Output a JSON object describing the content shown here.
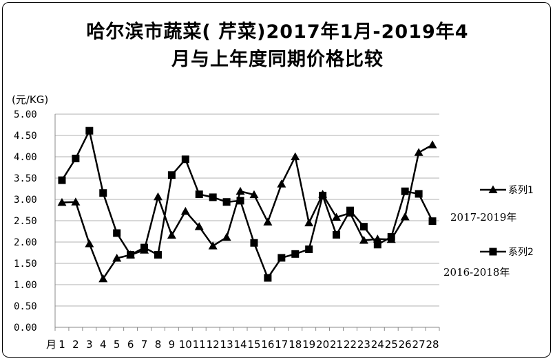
{
  "chart_data": {
    "type": "line",
    "title_line1": "哈尔滨市蔬菜( 芹菜)2017年1月-2019年4",
    "title_line2": "月与上年度同期价格比较",
    "ylabel": "(元/KG)",
    "ylim": [
      0,
      5
    ],
    "ytick_labels": [
      "0.00",
      "0.50",
      "1.00",
      "1.50",
      "2.00",
      "2.50",
      "3.00",
      "3.50",
      "4.00",
      "4.50",
      "5.00"
    ],
    "x_first_prefix": "月",
    "categories": [
      "1",
      "2",
      "3",
      "4",
      "5",
      "6",
      "7",
      "8",
      "9",
      "10",
      "11",
      "12",
      "13",
      "14",
      "15",
      "16",
      "17",
      "18",
      "19",
      "20",
      "21",
      "22",
      "23",
      "24",
      "25",
      "26",
      "27",
      "28"
    ],
    "grid": true,
    "series": [
      {
        "name": "系列1",
        "marker": "triangle",
        "period_label": "2017-2019年",
        "values": [
          2.93,
          2.94,
          1.96,
          1.14,
          1.62,
          1.7,
          1.81,
          3.06,
          2.16,
          2.72,
          2.36,
          1.91,
          2.11,
          3.19,
          3.11,
          2.47,
          3.36,
          4.0,
          2.45,
          3.12,
          2.58,
          2.68,
          2.04,
          2.07,
          2.06,
          2.59,
          4.1,
          4.28
        ]
      },
      {
        "name": "系列2",
        "marker": "square",
        "period_label": "2016-2018年",
        "values": [
          3.45,
          3.96,
          4.61,
          3.15,
          2.21,
          1.7,
          1.87,
          1.7,
          3.57,
          3.94,
          3.12,
          3.05,
          2.94,
          2.97,
          1.98,
          1.16,
          1.63,
          1.72,
          1.83,
          3.09,
          2.17,
          2.74,
          2.36,
          1.94,
          2.12,
          3.19,
          3.13,
          2.49
        ]
      }
    ],
    "colors": {
      "line": "#000000",
      "grid": "#b0b0b0",
      "axis": "#888888"
    }
  }
}
